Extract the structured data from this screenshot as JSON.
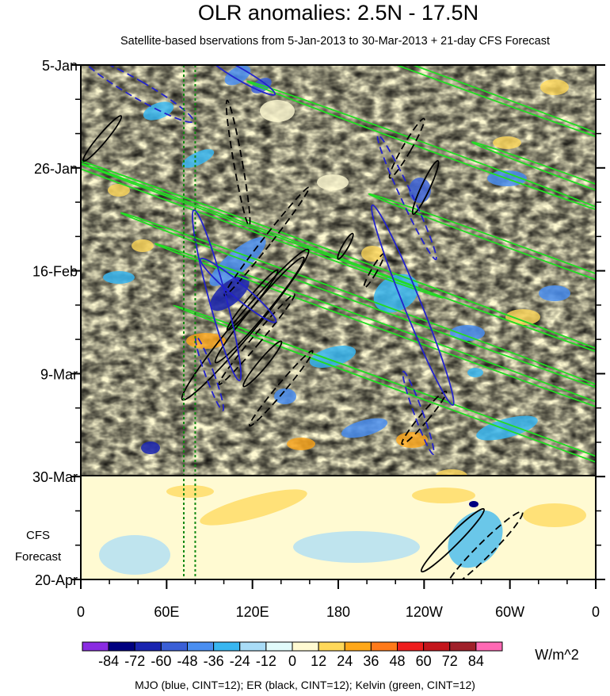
{
  "chart_data": {
    "type": "heatmap",
    "title": "OLR anomalies: 2.5N - 17.5N",
    "subtitle": "Satellite-based bservations from 5-Jan-2013 to 30-Mar-2013 + 21-day CFS Forecast",
    "x_ticks": [
      {
        "lon": 0,
        "label": "0"
      },
      {
        "lon": 60,
        "label": "60E"
      },
      {
        "lon": 120,
        "label": "120E"
      },
      {
        "lon": 180,
        "label": "180"
      },
      {
        "lon": 240,
        "label": "120W"
      },
      {
        "lon": 300,
        "label": "60W"
      },
      {
        "lon": 360,
        "label": "0"
      }
    ],
    "y_ticks": [
      {
        "day": 0,
        "label": "5-Jan"
      },
      {
        "day": 21,
        "label": "26-Jan"
      },
      {
        "day": 42,
        "label": "16-Feb"
      },
      {
        "day": 63,
        "label": "9-Mar"
      },
      {
        "day": 84,
        "label": "30-Mar"
      },
      {
        "day": 105,
        "label": "20-Apr"
      }
    ],
    "xlim": [
      0,
      360
    ],
    "ylim_days": [
      0,
      105
    ],
    "forecast_start_day": 84,
    "forecast_label": [
      "CFS",
      "Forecast"
    ],
    "reference_lines_lon": [
      72,
      80
    ],
    "colorbar": {
      "labels": [
        "-84",
        "-72",
        "-60",
        "-48",
        "-36",
        "-24",
        "-12",
        "0",
        "12",
        "24",
        "36",
        "48",
        "60",
        "72",
        "84"
      ],
      "colors": [
        "#8a2be2",
        "#000080",
        "#1a24b0",
        "#3a5fd6",
        "#4a8ef0",
        "#38b6f0",
        "#a9dcf7",
        "#e2fbfb",
        "#fffad2",
        "#ffd85a",
        "#ffa81a",
        "#ff7a1a",
        "#ee1e1e",
        "#c4161c",
        "#a0202a",
        "#ff69b4"
      ],
      "units": "W/m^2"
    },
    "caption": "MJO (blue, CINT=12); ER (black, CINT=12); Kelvin (green, CINT=12)",
    "contour_colors": {
      "mjo": "#2222cc",
      "er": "#000000",
      "kelvin": "#22dd22"
    },
    "mjo_contours": [
      {
        "lon": 40,
        "day": 5,
        "rx": 6,
        "ry": 13,
        "angle": -60,
        "dashed": true
      },
      {
        "lon": 112,
        "day": 2,
        "rx": 4,
        "ry": 8,
        "angle": -60,
        "dashed": false
      },
      {
        "lon": 95,
        "day": 47,
        "rx": 6,
        "ry": 18,
        "angle": -15,
        "dashed": false
      },
      {
        "lon": 110,
        "day": 46,
        "rx": 5,
        "ry": 10,
        "angle": -50,
        "dashed": false
      },
      {
        "lon": 232,
        "day": 49,
        "rx": 6,
        "ry": 22,
        "angle": -22,
        "dashed": false
      },
      {
        "lon": 228,
        "day": 27,
        "rx": 4,
        "ry": 14,
        "angle": -25,
        "dashed": true
      },
      {
        "lon": 90,
        "day": 63,
        "rx": 3,
        "ry": 8,
        "angle": -20,
        "dashed": true
      },
      {
        "lon": 236,
        "day": 71,
        "rx": 3,
        "ry": 9,
        "angle": -20,
        "dashed": true
      }
    ],
    "er_contours": [
      {
        "lon": 15,
        "day": 15,
        "rx": 3,
        "ry": 6,
        "angle": 40,
        "dashed": false
      },
      {
        "lon": 115,
        "day": 53,
        "rx": 7,
        "ry": 20,
        "angle": 40,
        "dashed": false
      },
      {
        "lon": 125,
        "day": 50,
        "rx": 5,
        "ry": 14,
        "angle": 40,
        "dashed": false
      },
      {
        "lon": 120,
        "day": 48,
        "rx": 3,
        "ry": 8,
        "angle": 40,
        "dashed": false
      },
      {
        "lon": 241,
        "day": 25,
        "rx": 3,
        "ry": 6,
        "angle": 25,
        "dashed": false
      },
      {
        "lon": 127,
        "day": 61,
        "rx": 3,
        "ry": 6,
        "angle": 40,
        "dashed": false
      },
      {
        "lon": 260,
        "day": 97,
        "rx": 4,
        "ry": 9,
        "angle": 45,
        "dashed": false
      },
      {
        "lon": 185,
        "day": 37,
        "rx": 2,
        "ry": 3,
        "angle": 30,
        "dashed": false
      },
      {
        "lon": 110,
        "day": 20,
        "rx": 3,
        "ry": 13,
        "angle": -10,
        "dashed": true
      },
      {
        "lon": 130,
        "day": 36,
        "rx": 3,
        "ry": 14,
        "angle": 38,
        "dashed": true
      },
      {
        "lon": 123,
        "day": 56,
        "rx": 3,
        "ry": 12,
        "angle": 40,
        "dashed": true
      },
      {
        "lon": 140,
        "day": 66,
        "rx": 3,
        "ry": 10,
        "angle": 40,
        "dashed": true
      },
      {
        "lon": 228,
        "day": 17,
        "rx": 3,
        "ry": 7,
        "angle": 30,
        "dashed": true
      },
      {
        "lon": 205,
        "day": 42,
        "rx": 2,
        "ry": 4,
        "angle": 30,
        "dashed": true
      },
      {
        "lon": 240,
        "day": 72,
        "rx": 3,
        "ry": 7,
        "angle": 40,
        "dashed": true
      },
      {
        "lon": 282,
        "day": 99,
        "rx": 5,
        "ry": 11,
        "angle": 45,
        "dashed": true
      }
    ],
    "kelvin_contours": [
      {
        "lon": 250,
        "day": 2.5,
        "rx": 2,
        "ry": 45,
        "angle": -70,
        "dashed": false
      },
      {
        "lon": 245,
        "day": 17,
        "rx": 2,
        "ry": 40,
        "angle": -70,
        "dashed": false
      },
      {
        "lon": 60,
        "day": 27,
        "rx": 2,
        "ry": 60,
        "angle": -70,
        "dashed": false
      },
      {
        "lon": 180,
        "day": 39,
        "rx": 2,
        "ry": 65,
        "angle": -70,
        "dashed": false
      },
      {
        "lon": 205,
        "day": 49,
        "rx": 2,
        "ry": 55,
        "angle": -70,
        "dashed": false
      },
      {
        "lon": 245,
        "day": 57,
        "rx": 2,
        "ry": 60,
        "angle": -70,
        "dashed": false
      },
      {
        "lon": 290,
        "day": 73,
        "rx": 2,
        "ry": 70,
        "angle": -70,
        "dashed": false
      },
      {
        "lon": 370,
        "day": 26,
        "rx": 2,
        "ry": 30,
        "angle": -70,
        "dashed": false
      },
      {
        "lon": 330,
        "day": 40,
        "rx": 2,
        "ry": 40,
        "angle": -70,
        "dashed": false
      }
    ]
  }
}
